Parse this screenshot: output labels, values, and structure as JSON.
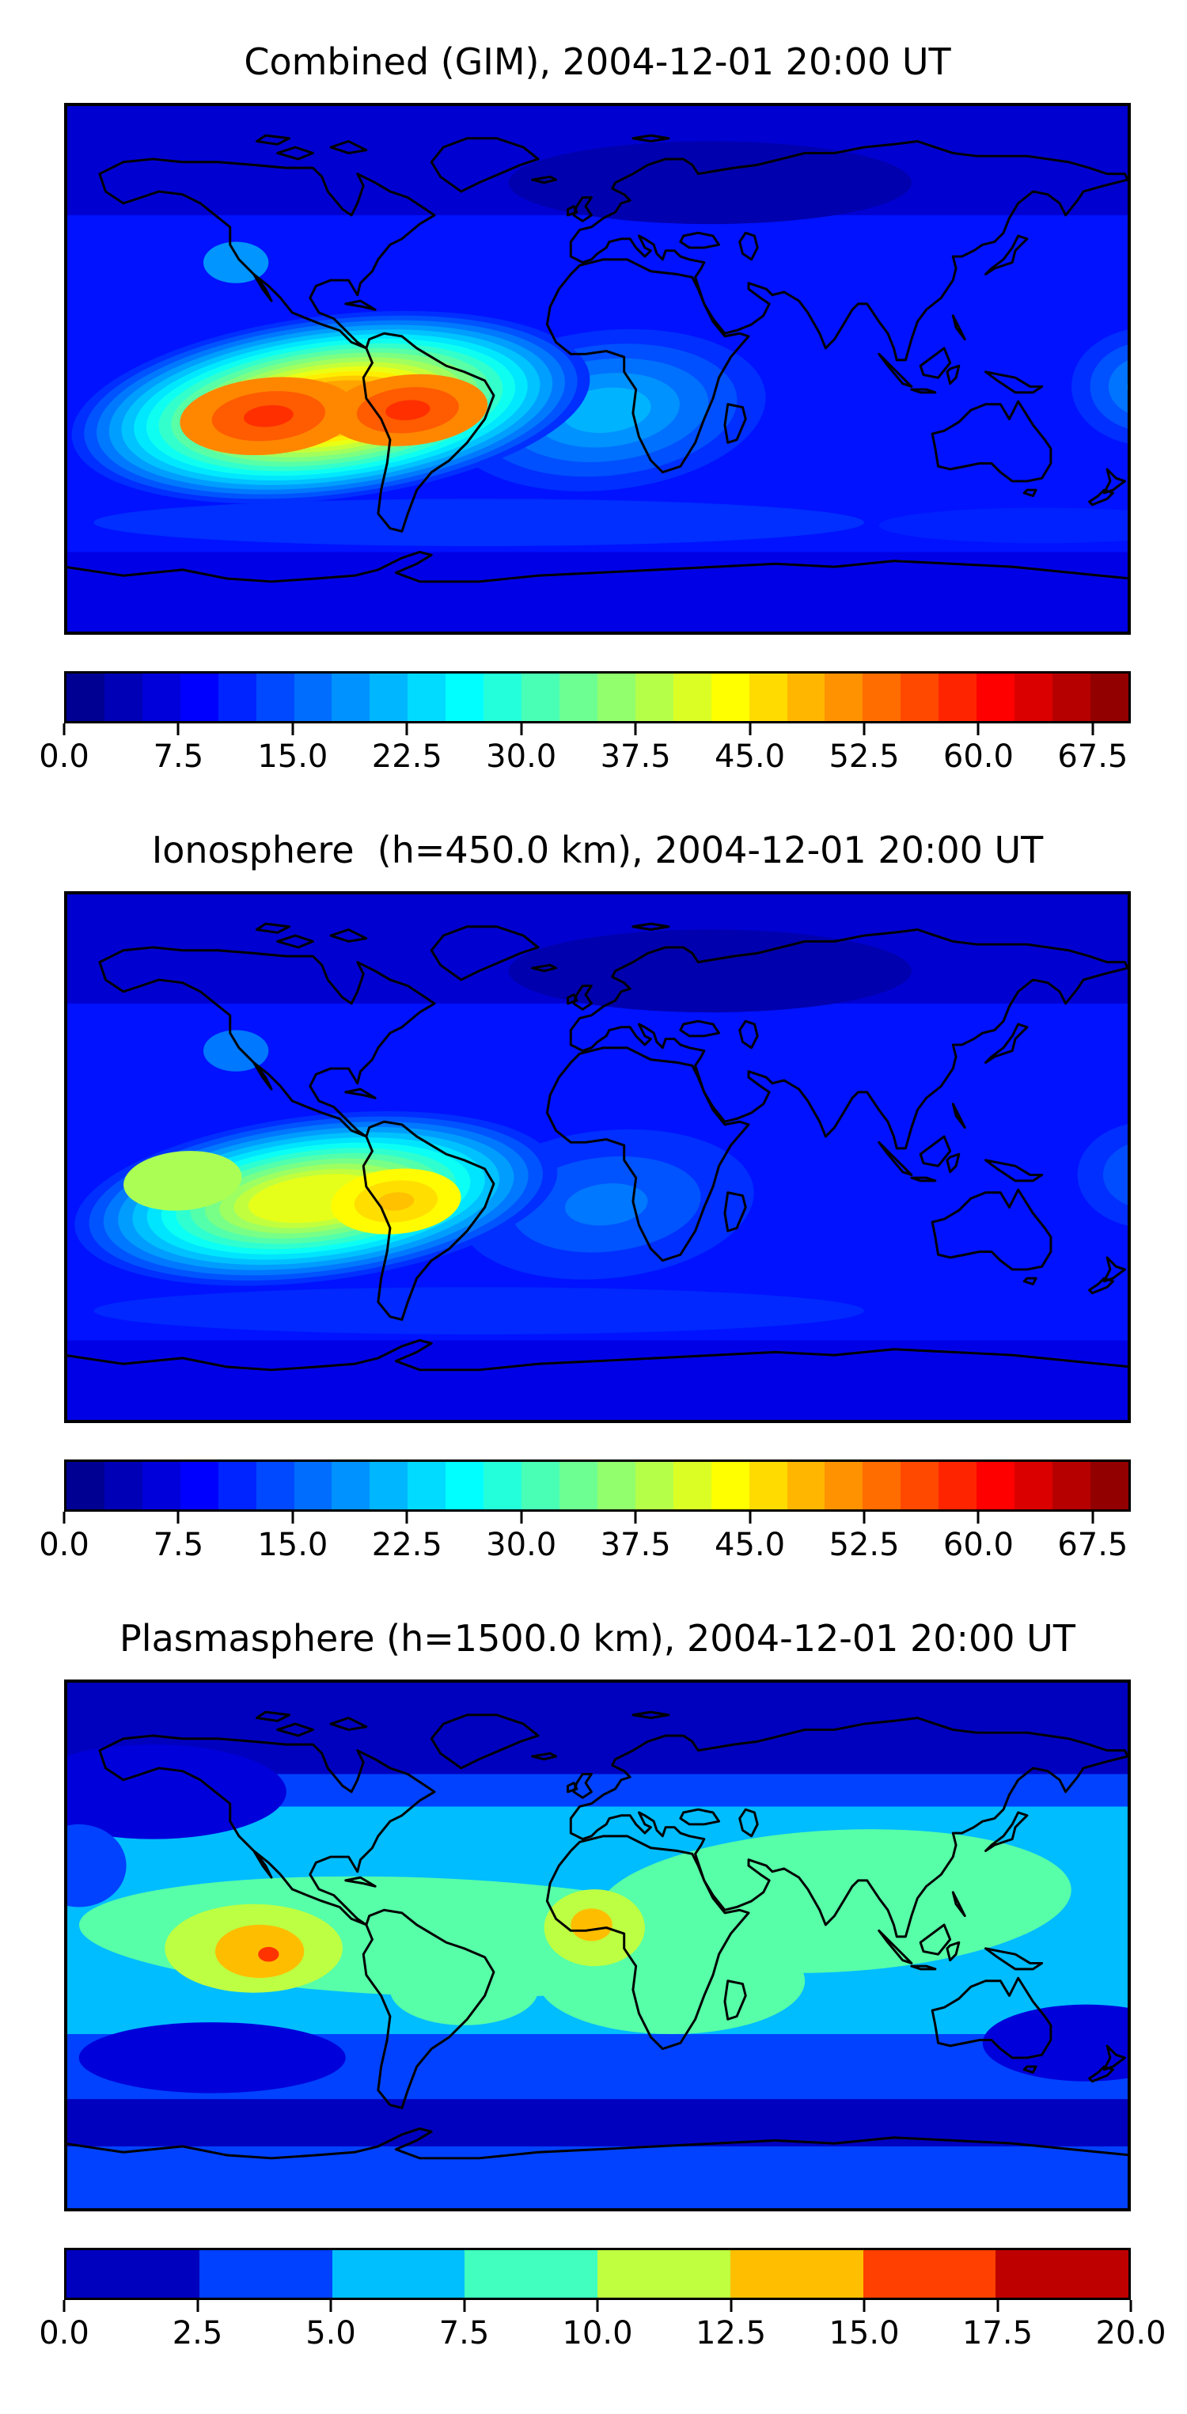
{
  "figure": {
    "background": "#ffffff",
    "accent_colormap": "jet",
    "description_visible_panels": 3
  },
  "chart_data": [
    {
      "type": "heatmap",
      "title": "Combined (GIM), 2004-12-01 20:00 UT",
      "colormap": "jet",
      "projection": "equirectangular",
      "lon_range": [
        -180,
        180
      ],
      "lat_range": [
        -90,
        90
      ],
      "value_range": [
        0,
        70
      ],
      "colorbar_segments": 28,
      "colorbar_tick_values": [
        0,
        7.5,
        15,
        22.5,
        30,
        37.5,
        45,
        52.5,
        60,
        67.5
      ],
      "colorbar_tick_labels": [
        "0.0",
        "7.5",
        "15.0",
        "22.5",
        "30.0",
        "37.5",
        "45.0",
        "52.5",
        "60.0",
        "67.5"
      ],
      "grid": false,
      "coastlines": true,
      "field": {
        "base": 10,
        "features": [
          {
            "type": "band",
            "lat1": 52,
            "lat2": 90,
            "v": 5.5
          },
          {
            "type": "blob",
            "lon": 38,
            "lat": 63,
            "rx": 68,
            "ry": 14,
            "v": 3.2,
            "rot": 0
          },
          {
            "type": "band",
            "lat1": -90,
            "lat2": -62,
            "v": 7
          },
          {
            "type": "blob",
            "lon": -40,
            "lat": -52,
            "rx": 130,
            "ry": 8,
            "v": 12,
            "rot": 0
          },
          {
            "type": "blob",
            "lon": 150,
            "lat": -53,
            "rx": 55,
            "ry": 6,
            "v": 11,
            "rot": 0
          },
          {
            "type": "rings",
            "lon": 3,
            "lat": -14,
            "rx": 54,
            "ry": 27,
            "v0": 12,
            "v1": 21,
            "rot": -6
          },
          {
            "type": "rings",
            "lon": 186,
            "lat": -6,
            "rx": 26,
            "ry": 20,
            "v0": 12,
            "v1": 19,
            "rot": 0
          },
          {
            "type": "blob",
            "lon": -122,
            "lat": 36,
            "rx": 11,
            "ry": 7,
            "v": 19,
            "rot": 0
          },
          {
            "type": "rings",
            "lon": -90,
            "lat": -13,
            "rx": 88,
            "ry": 31,
            "v0": 12,
            "v1": 50,
            "rot": -7
          },
          {
            "type": "rings",
            "lon": -111,
            "lat": -16,
            "rx": 30,
            "ry": 13,
            "v0": 52,
            "v1": 58,
            "rot": -5
          },
          {
            "type": "rings",
            "lon": -64,
            "lat": -14,
            "rx": 27,
            "ry": 12,
            "v0": 52,
            "v1": 58,
            "rot": -5
          }
        ]
      }
    },
    {
      "type": "heatmap",
      "title": "Ionosphere  (h=450.0 km), 2004-12-01 20:00 UT",
      "colormap": "jet",
      "projection": "equirectangular",
      "lon_range": [
        -180,
        180
      ],
      "lat_range": [
        -90,
        90
      ],
      "value_range": [
        0,
        70
      ],
      "colorbar_segments": 28,
      "colorbar_tick_values": [
        0,
        7.5,
        15,
        22.5,
        30,
        37.5,
        45,
        52.5,
        60,
        67.5
      ],
      "colorbar_tick_labels": [
        "0.0",
        "7.5",
        "15.0",
        "22.5",
        "30.0",
        "37.5",
        "45.0",
        "52.5",
        "60.0",
        "67.5"
      ],
      "grid": false,
      "coastlines": true,
      "field": {
        "base": 10,
        "features": [
          {
            "type": "band",
            "lat1": 52,
            "lat2": 90,
            "v": 5.5
          },
          {
            "type": "blob",
            "lon": 38,
            "lat": 63,
            "rx": 68,
            "ry": 14,
            "v": 3.2,
            "rot": 0
          },
          {
            "type": "band",
            "lat1": -90,
            "lat2": -62,
            "v": 7
          },
          {
            "type": "blob",
            "lon": -40,
            "lat": -52,
            "rx": 130,
            "ry": 8,
            "v": 11.5,
            "rot": 0
          },
          {
            "type": "rings",
            "lon": 3,
            "lat": -16,
            "rx": 50,
            "ry": 25,
            "v0": 12,
            "v1": 17,
            "rot": -6
          },
          {
            "type": "rings",
            "lon": 186,
            "lat": -6,
            "rx": 24,
            "ry": 18,
            "v0": 12,
            "v1": 16,
            "rot": 0
          },
          {
            "type": "blob",
            "lon": -122,
            "lat": 36,
            "rx": 11,
            "ry": 7,
            "v": 17,
            "rot": 0
          },
          {
            "type": "rings",
            "lon": -95,
            "lat": -14,
            "rx": 82,
            "ry": 28,
            "v0": 12,
            "v1": 42,
            "rot": -7
          },
          {
            "type": "blob",
            "lon": -140,
            "lat": -8,
            "rx": 20,
            "ry": 10,
            "v": 38,
            "rot": -5
          },
          {
            "type": "rings",
            "lon": -68,
            "lat": -15,
            "rx": 22,
            "ry": 11,
            "v0": 44,
            "v1": 48,
            "rot": -5
          }
        ]
      }
    },
    {
      "type": "heatmap",
      "title": "Plasmasphere (h=1500.0 km), 2004-12-01 20:00 UT",
      "colormap": "jet",
      "projection": "equirectangular",
      "lon_range": [
        -180,
        180
      ],
      "lat_range": [
        -90,
        90
      ],
      "value_range": [
        0,
        20
      ],
      "colorbar_segments": 8,
      "colorbar_tick_values": [
        0,
        2.5,
        5,
        7.5,
        10,
        12.5,
        15,
        17.5,
        20
      ],
      "colorbar_tick_labels": [
        "0.0",
        "2.5",
        "5.0",
        "7.5",
        "10.0",
        "12.5",
        "15.0",
        "17.5",
        "20.0"
      ],
      "grid": false,
      "coastlines": true,
      "field": {
        "base": 1.25,
        "features": [
          {
            "type": "band",
            "lat1": -52,
            "lat2": 58,
            "v": 3.8
          },
          {
            "type": "band",
            "lat1": -90,
            "lat2": -68,
            "v": 3.8
          },
          {
            "type": "band",
            "lat1": -30,
            "lat2": 47,
            "v": 6.2
          },
          {
            "type": "blob",
            "lon": -150,
            "lat": 52,
            "rx": 45,
            "ry": 16,
            "v": 1.8,
            "rot": 0
          },
          {
            "type": "blob",
            "lon": -175,
            "lat": 27,
            "rx": 16,
            "ry": 14,
            "v": 3.8,
            "rot": 0
          },
          {
            "type": "blob",
            "lon": -130,
            "lat": -38,
            "rx": 45,
            "ry": 12,
            "v": 1.8,
            "rot": 0
          },
          {
            "type": "blob",
            "lon": 165,
            "lat": -33,
            "rx": 35,
            "ry": 13,
            "v": 1.8,
            "rot": 0
          },
          {
            "type": "blob",
            "lon": -60,
            "lat": 3,
            "rx": 115,
            "ry": 20,
            "v": 9.2,
            "rot": 2
          },
          {
            "type": "blob",
            "lon": 80,
            "lat": 15,
            "rx": 80,
            "ry": 24,
            "v": 9.2,
            "rot": -3
          },
          {
            "type": "blob",
            "lon": 25,
            "lat": -12,
            "rx": 45,
            "ry": 18,
            "v": 9.2,
            "rot": 0
          },
          {
            "type": "blob",
            "lon": -45,
            "lat": -15,
            "rx": 25,
            "ry": 12,
            "v": 9.2,
            "rot": 0
          },
          {
            "type": "blob",
            "lon": -116,
            "lat": -1,
            "rx": 30,
            "ry": 15,
            "v": 11.2,
            "rot": 0
          },
          {
            "type": "blob",
            "lon": -1,
            "lat": 6,
            "rx": 17,
            "ry": 13,
            "v": 11.2,
            "rot": 0
          },
          {
            "type": "blob",
            "lon": -114,
            "lat": -2,
            "rx": 15,
            "ry": 9,
            "v": 13.8,
            "rot": 0
          },
          {
            "type": "blob",
            "lon": -2,
            "lat": 7,
            "rx": 7,
            "ry": 5.5,
            "v": 13.8,
            "rot": 0
          },
          {
            "type": "blob",
            "lon": -111,
            "lat": -3,
            "rx": 3.5,
            "ry": 2.5,
            "v": 16.5,
            "rot": 0
          }
        ]
      }
    }
  ]
}
